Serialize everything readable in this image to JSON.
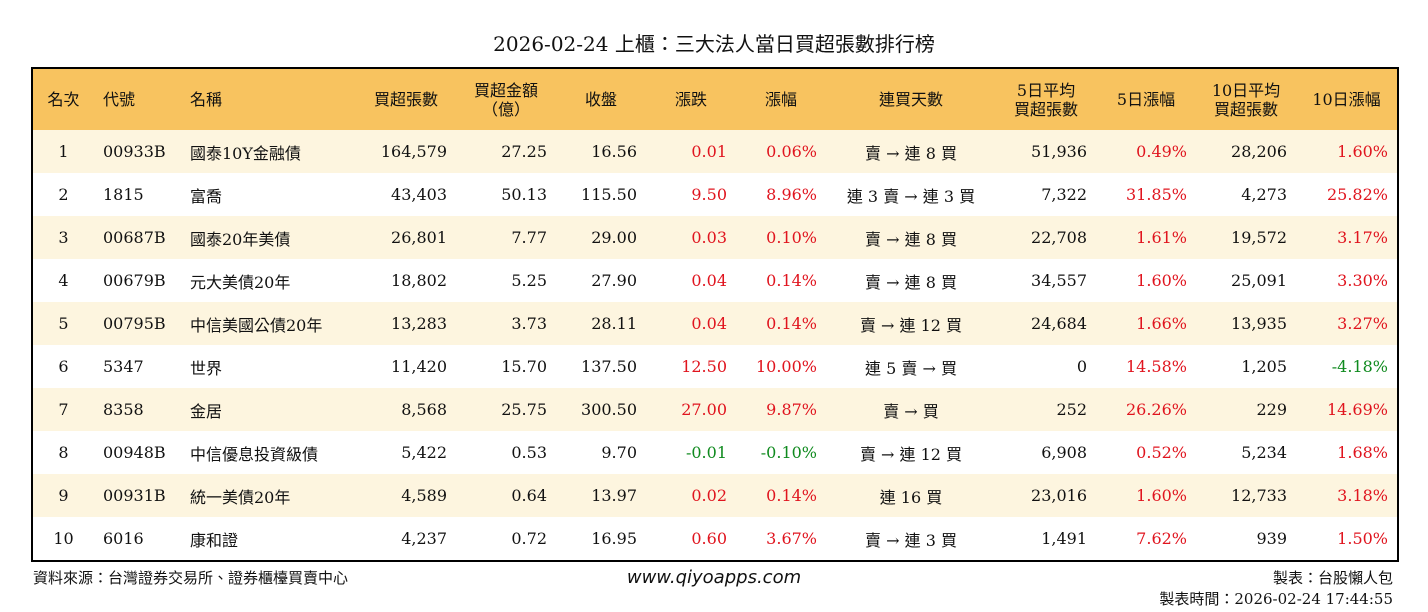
{
  "header": {
    "title": "2026-02-24 上櫃：三大法人當日買超張數排行榜"
  },
  "table": {
    "columns": [
      "名次",
      "代號",
      "名稱",
      "買超張數",
      "買超金額\n（億）",
      "收盤",
      "漲跌",
      "漲幅",
      "連買天數",
      "5日平均\n買超張數",
      "5日漲幅",
      "10日平均\n買超張數",
      "10日漲幅"
    ],
    "rows": [
      [
        "1",
        "00933B",
        "國泰10Y金融債",
        "164,579",
        "27.25",
        "16.56",
        "0.01",
        "0.06%",
        "賣 → 連 8 買",
        "51,936",
        "0.49%",
        "28,206",
        "1.60%"
      ],
      [
        "2",
        "1815",
        "富喬",
        "43,403",
        "50.13",
        "115.50",
        "9.50",
        "8.96%",
        "連 3 賣 → 連 3 買",
        "7,322",
        "31.85%",
        "4,273",
        "25.82%"
      ],
      [
        "3",
        "00687B",
        "國泰20年美債",
        "26,801",
        "7.77",
        "29.00",
        "0.03",
        "0.10%",
        "賣 → 連 8 買",
        "22,708",
        "1.61%",
        "19,572",
        "3.17%"
      ],
      [
        "4",
        "00679B",
        "元大美債20年",
        "18,802",
        "5.25",
        "27.90",
        "0.04",
        "0.14%",
        "賣 → 連 8 買",
        "34,557",
        "1.60%",
        "25,091",
        "3.30%"
      ],
      [
        "5",
        "00795B",
        "中信美國公債20年",
        "13,283",
        "3.73",
        "28.11",
        "0.04",
        "0.14%",
        "賣 → 連 12 買",
        "24,684",
        "1.66%",
        "13,935",
        "3.27%"
      ],
      [
        "6",
        "5347",
        "世界",
        "11,420",
        "15.70",
        "137.50",
        "12.50",
        "10.00%",
        "連 5 賣 → 買",
        "0",
        "14.58%",
        "1,205",
        "-4.18%"
      ],
      [
        "7",
        "8358",
        "金居",
        "8,568",
        "25.75",
        "300.50",
        "27.00",
        "9.87%",
        "賣 → 買",
        "252",
        "26.26%",
        "229",
        "14.69%"
      ],
      [
        "8",
        "00948B",
        "中信優息投資級債",
        "5,422",
        "0.53",
        "9.70",
        "-0.01",
        "-0.10%",
        "賣 → 連 12 買",
        "6,908",
        "0.52%",
        "5,234",
        "1.68%"
      ],
      [
        "9",
        "00931B",
        "統一美債20年",
        "4,589",
        "0.64",
        "13.97",
        "0.02",
        "0.14%",
        "連 16 買",
        "23,016",
        "1.60%",
        "12,733",
        "3.18%"
      ],
      [
        "10",
        "6016",
        "康和證",
        "4,237",
        "0.72",
        "16.95",
        "0.60",
        "3.67%",
        "賣 → 連 3 買",
        "1,491",
        "7.62%",
        "939",
        "1.50%"
      ]
    ]
  },
  "footer": {
    "source": "資料來源：台灣證券交易所、證券櫃檯買賣中心",
    "website": "www.qiyoapps.com",
    "maker": "製表：台股懶人包",
    "time": "製表時間：2026-02-24 17:44:55"
  }
}
